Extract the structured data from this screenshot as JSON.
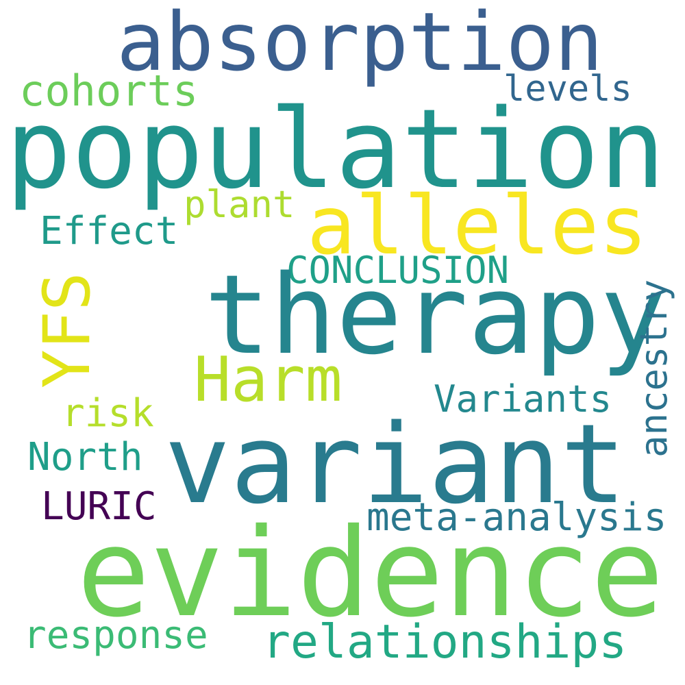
{
  "words": [
    {
      "id": "absorption",
      "text": "absorption",
      "color": "#3b5f8f"
    },
    {
      "id": "population",
      "text": "population",
      "color": "#20938c"
    },
    {
      "id": "cohorts",
      "text": "cohorts",
      "color": "#6ccd5a"
    },
    {
      "id": "levels",
      "text": "levels",
      "color": "#31668e"
    },
    {
      "id": "alleles",
      "text": "alleles",
      "color": "#f8e621"
    },
    {
      "id": "plant",
      "text": "plant",
      "color": "#addc30"
    },
    {
      "id": "effect",
      "text": "Effect",
      "color": "#1f9a8a"
    },
    {
      "id": "conclusion",
      "text": "CONCLUSION",
      "color": "#1fa088"
    },
    {
      "id": "therapy",
      "text": "therapy",
      "color": "#25858e"
    },
    {
      "id": "harm",
      "text": "Harm",
      "color": "#b8de29"
    },
    {
      "id": "variants",
      "text": "Variants",
      "color": "#23888e"
    },
    {
      "id": "risk",
      "text": "risk",
      "color": "#b5de2b"
    },
    {
      "id": "north",
      "text": "North",
      "color": "#1f9e89"
    },
    {
      "id": "variant",
      "text": "variant",
      "color": "#297b8e"
    },
    {
      "id": "luric",
      "text": "LURIC",
      "color": "#440154"
    },
    {
      "id": "meta",
      "text": "meta-analysis",
      "color": "#2a788e"
    },
    {
      "id": "evidence",
      "text": "evidence",
      "color": "#6ece58"
    },
    {
      "id": "response",
      "text": "response",
      "color": "#3bbb75"
    },
    {
      "id": "relationships",
      "text": "relationships",
      "color": "#22a884"
    },
    {
      "id": "yfs",
      "text": "YFS",
      "color": "#e2e418"
    },
    {
      "id": "ancestry",
      "text": "ancestry",
      "color": "#2c728e"
    }
  ]
}
